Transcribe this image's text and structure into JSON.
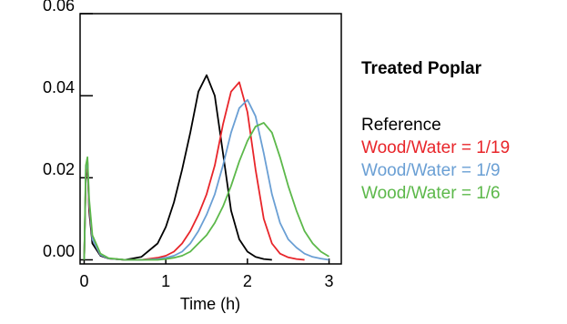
{
  "chart_data": {
    "type": "line",
    "legend_title": "Treated Poplar",
    "x_label": "Time (h)",
    "x": [
      0,
      0.02,
      0.04,
      0.06,
      0.1,
      0.2,
      0.3,
      0.5,
      0.7,
      0.9,
      1.0,
      1.1,
      1.2,
      1.3,
      1.4,
      1.5,
      1.6,
      1.7,
      1.8,
      1.9,
      2.0,
      2.1,
      2.2,
      2.3,
      2.4,
      2.5,
      2.6,
      2.7,
      2.8,
      2.9,
      3.0
    ],
    "series": [
      {
        "name": "Reference",
        "color": "#000000",
        "values": [
          0,
          0.02,
          0.024,
          0.012,
          0.004,
          0.001,
          0.0003,
          0,
          0.0007,
          0.004,
          0.008,
          0.014,
          0.022,
          0.031,
          0.041,
          0.045,
          0.04,
          0.026,
          0.012,
          0.005,
          0.002,
          0.0007,
          0.0002,
          0,
          null,
          null,
          null,
          null,
          null,
          null,
          null
        ]
      },
      {
        "name": "Wood/Water = 1/19",
        "color": "#e8252a",
        "values": [
          0,
          0.021,
          0.024,
          0.013,
          0.005,
          0.0012,
          0.0003,
          0,
          0,
          0.0005,
          0.001,
          0.002,
          0.004,
          0.007,
          0.011,
          0.016,
          0.023,
          0.033,
          0.041,
          0.0433,
          0.036,
          0.022,
          0.01,
          0.004,
          0.0015,
          0.0006,
          0.0002,
          0,
          null,
          null,
          null
        ]
      },
      {
        "name": "Wood/Water = 1/9",
        "color": "#6a9fd4",
        "values": [
          0,
          0.022,
          0.0245,
          0.014,
          0.005,
          0.0012,
          0.0003,
          0,
          0,
          0.0002,
          0.0005,
          0.001,
          0.002,
          0.004,
          0.007,
          0.011,
          0.016,
          0.023,
          0.031,
          0.037,
          0.039,
          0.035,
          0.026,
          0.016,
          0.009,
          0.005,
          0.003,
          0.0015,
          0.0007,
          0.0003,
          0
        ]
      },
      {
        "name": "Wood/Water = 1/6",
        "color": "#5cb84a",
        "values": [
          0,
          0.023,
          0.025,
          0.015,
          0.006,
          0.0015,
          0.0004,
          0,
          0,
          0,
          0.0002,
          0.0005,
          0.001,
          0.002,
          0.004,
          0.006,
          0.009,
          0.013,
          0.018,
          0.024,
          0.029,
          0.0325,
          0.0334,
          0.031,
          0.025,
          0.018,
          0.012,
          0.007,
          0.004,
          0.002,
          0.0008
        ]
      }
    ],
    "xlim": [
      -0.05,
      3.15
    ],
    "xticks": [
      0,
      1,
      2,
      3
    ],
    "ylim": [
      -0.001,
      0.06
    ],
    "yticks": [
      {
        "value": 0,
        "label": "0.00"
      },
      {
        "value": 0.02,
        "label": "0.02"
      },
      {
        "value": 0.04,
        "label": "0.04"
      },
      {
        "value": 0.06,
        "label": "0.06"
      }
    ],
    "grid": false
  }
}
